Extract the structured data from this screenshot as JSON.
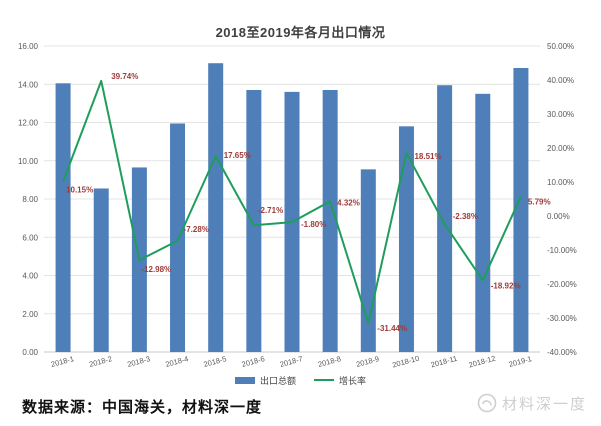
{
  "title": "2018至2019年各月出口情况",
  "legend": [
    {
      "label": "出口总额",
      "type": "bar"
    },
    {
      "label": "增长率",
      "type": "line"
    }
  ],
  "footer": {
    "source_text": "数据来源：中国海关，材料深一度",
    "watermark_text": "材料深一度"
  },
  "colors": {
    "bar": "#4f7fb8",
    "line": "#1f9d5c",
    "data_label": "#9e3b38",
    "axis_text": "#595959",
    "grid": "#e4e4e4",
    "axis_line": "#c9c9c9",
    "title_text": "#3f3f3f"
  },
  "chart_data": {
    "type": "bar",
    "subtype": "bar-line-combo",
    "title": "2018至2019年各月出口情况",
    "categories": [
      "2018-1",
      "2018-2",
      "2018-3",
      "2018-4",
      "2018-5",
      "2018-6",
      "2018-7",
      "2018-8",
      "2018-9",
      "2018-10",
      "2018-11",
      "2018-12",
      "2019-1"
    ],
    "series": [
      {
        "name": "出口总额",
        "type": "bar",
        "axis": "left",
        "values": [
          14.05,
          8.55,
          9.65,
          11.95,
          15.1,
          13.7,
          13.6,
          13.7,
          9.55,
          11.8,
          13.95,
          13.5,
          14.85
        ]
      },
      {
        "name": "增长率",
        "type": "line",
        "axis": "right",
        "values": [
          10.15,
          39.74,
          -12.98,
          -7.28,
          17.65,
          -2.71,
          -1.8,
          4.32,
          -31.44,
          18.51,
          -2.38,
          -18.92,
          5.79
        ],
        "labels": [
          "10.15%",
          "39.74%",
          "-12.98%",
          "-7.28%",
          "17.65%",
          "-2.71%",
          "-1.80%",
          "4.32%",
          "-31.44%",
          "18.51%",
          "-2.38%",
          "-18.92%",
          "5.79%"
        ]
      }
    ],
    "left_axis": {
      "min": 0,
      "max": 16,
      "step": 2,
      "tick_labels": [
        "0.00",
        "2.00",
        "4.00",
        "6.00",
        "8.00",
        "10.00",
        "12.00",
        "14.00",
        "16.00"
      ]
    },
    "right_axis": {
      "min": -40,
      "max": 50,
      "step": 10,
      "tick_labels": [
        "-40.00%",
        "-30.00%",
        "-20.00%",
        "-10.00%",
        "0.00%",
        "10.00%",
        "20.00%",
        "30.00%",
        "40.00%",
        "50.00%"
      ]
    },
    "grid": true,
    "legend_position": "bottom"
  }
}
